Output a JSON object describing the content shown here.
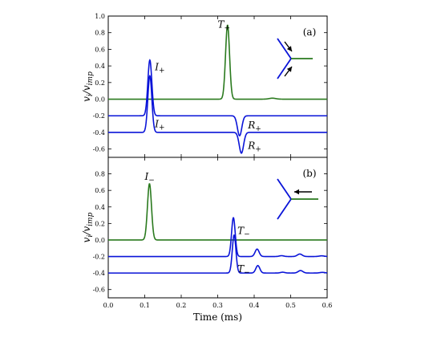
{
  "chart_data": [
    {
      "type": "line",
      "panel_label": "(a)",
      "ylabel": "v_i/v_imp",
      "xlabel": "",
      "xlim": [
        0,
        0.6
      ],
      "ylim": [
        -0.7,
        1.0
      ],
      "xticks": [
        0.0,
        0.1,
        0.2,
        0.3,
        0.4,
        0.5,
        0.6
      ],
      "xtick_labels": [],
      "yticks": [
        1.0,
        0.8,
        0.6,
        0.4,
        0.2,
        0.0,
        -0.2,
        -0.4,
        -0.6
      ],
      "ytick_labels": [
        "1.0",
        "0.8",
        "0.6",
        "0.4",
        "0.2",
        "0.0",
        "-0.2",
        "-0.4",
        "-0.6"
      ],
      "series": [
        {
          "color": "#2a7a1e",
          "baseline": 0.0,
          "pulses": [
            {
              "center": 0.327,
              "width": 0.0055,
              "amp": 0.89
            },
            {
              "center": 0.45,
              "width": 0.009,
              "amp": 0.012
            }
          ]
        },
        {
          "color": "#0a14d8",
          "baseline": -0.2,
          "pulses": [
            {
              "center": 0.114,
              "width": 0.0055,
              "amp": 0.67
            },
            {
              "center": 0.36,
              "width": 0.006,
              "amp": -0.24
            }
          ]
        },
        {
          "color": "#0a14d8",
          "baseline": -0.4,
          "pulses": [
            {
              "center": 0.114,
              "width": 0.0055,
              "amp": 0.68
            },
            {
              "center": 0.365,
              "width": 0.006,
              "amp": -0.25
            }
          ]
        }
      ],
      "annotations": [
        {
          "label": "T",
          "sub": "+",
          "x": 0.3,
          "y": 0.86
        },
        {
          "label": "I",
          "sub": "+",
          "x": 0.128,
          "y": 0.35
        },
        {
          "label": "I",
          "sub": "+",
          "x": 0.128,
          "y": -0.34
        },
        {
          "label": "R",
          "sub": "+",
          "x": 0.383,
          "y": -0.35
        },
        {
          "label": "R",
          "sub": "+",
          "x": 0.383,
          "y": -0.6
        }
      ]
    },
    {
      "type": "line",
      "panel_label": "(b)",
      "ylabel": "v_i/v_imp",
      "xlabel": "Time (ms)",
      "xlim": [
        0,
        0.6
      ],
      "ylim": [
        -0.7,
        1.0
      ],
      "xticks": [
        0.0,
        0.1,
        0.2,
        0.3,
        0.4,
        0.5,
        0.6
      ],
      "xtick_labels": [
        "0.0",
        "0.1",
        "0.2",
        "0.3",
        "0.4",
        "0.5",
        "0.6"
      ],
      "yticks": [
        1.0,
        0.8,
        0.6,
        0.4,
        0.2,
        0.0,
        -0.2,
        -0.4,
        -0.6
      ],
      "ytick_labels": [
        "",
        "0.8",
        "0.6",
        "0.4",
        "0.2",
        "0.0",
        "-0.2",
        "-0.4",
        "-0.6"
      ],
      "series": [
        {
          "color": "#2a7a1e",
          "baseline": 0.0,
          "pulses": [
            {
              "center": 0.113,
              "width": 0.0055,
              "amp": 0.68
            }
          ]
        },
        {
          "color": "#0a14d8",
          "baseline": -0.2,
          "pulses": [
            {
              "center": 0.343,
              "width": 0.005,
              "amp": 0.47
            },
            {
              "center": 0.408,
              "width": 0.0055,
              "amp": 0.09
            },
            {
              "center": 0.475,
              "width": 0.006,
              "amp": 0.01
            },
            {
              "center": 0.525,
              "width": 0.0065,
              "amp": 0.03
            },
            {
              "center": 0.585,
              "width": 0.007,
              "amp": 0.008
            }
          ]
        },
        {
          "color": "#0a14d8",
          "baseline": -0.4,
          "pulses": [
            {
              "center": 0.345,
              "width": 0.005,
              "amp": 0.46
            },
            {
              "center": 0.41,
              "width": 0.0055,
              "amp": 0.09
            },
            {
              "center": 0.478,
              "width": 0.006,
              "amp": 0.01
            },
            {
              "center": 0.527,
              "width": 0.0065,
              "amp": 0.03
            },
            {
              "center": 0.587,
              "width": 0.007,
              "amp": 0.008
            }
          ]
        }
      ],
      "annotations": [
        {
          "label": "I",
          "sub": "−",
          "x": 0.1,
          "y": 0.73
        },
        {
          "label": "T",
          "sub": "−",
          "x": 0.354,
          "y": 0.07
        },
        {
          "label": "T",
          "sub": "−",
          "x": 0.354,
          "y": -0.39
        }
      ]
    }
  ]
}
